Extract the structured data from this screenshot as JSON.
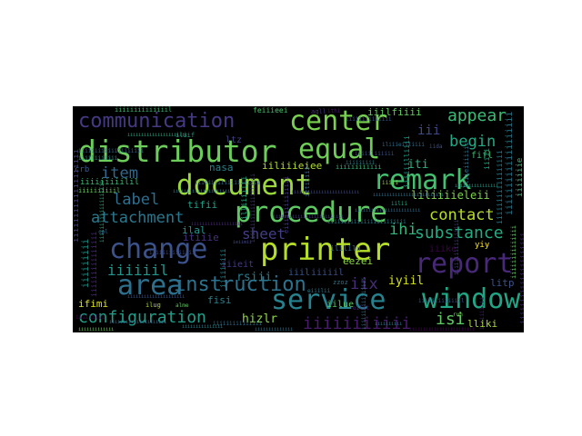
{
  "word_cloud": {
    "background": "#000000",
    "words": [
      {
        "text": "distributor",
        "color": "#6ccd5a"
      },
      {
        "text": "document",
        "color": "#9bd93c"
      },
      {
        "text": "procedure",
        "color": "#5ec962"
      },
      {
        "text": "printer",
        "color": "#b5de2b"
      },
      {
        "text": "change",
        "color": "#3b528b"
      },
      {
        "text": "equal",
        "color": "#6ece58"
      },
      {
        "text": "center",
        "color": "#7ad151"
      },
      {
        "text": "remark",
        "color": "#45bf70"
      },
      {
        "text": "report",
        "color": "#482878"
      },
      {
        "text": "area",
        "color": "#2d708e"
      },
      {
        "text": "service",
        "color": "#26828e"
      },
      {
        "text": "window",
        "color": "#21a685"
      },
      {
        "text": "communication",
        "color": "#443983"
      },
      {
        "text": "instruction",
        "color": "#2c728e"
      },
      {
        "text": "configuration",
        "color": "#1f9e89"
      },
      {
        "text": "substance",
        "color": "#25ab82"
      },
      {
        "text": "contact",
        "color": "#b8de29"
      },
      {
        "text": "attachment",
        "color": "#2a788e"
      },
      {
        "text": "appear",
        "color": "#3bbb75"
      },
      {
        "text": "begin",
        "color": "#22a884"
      },
      {
        "text": "label",
        "color": "#2e6e8e"
      },
      {
        "text": "item",
        "color": "#31688e"
      },
      {
        "text": "sheet",
        "color": "#433e85"
      },
      {
        "text": "iiiiiil",
        "color": "#1f958b"
      },
      {
        "text": "iiiiiiiiiii",
        "color": "#481b6d"
      },
      {
        "text": "iii",
        "color": "#3e4989"
      },
      {
        "text": "iti",
        "color": "#2ab07f"
      },
      {
        "text": "ihi",
        "color": "#35b779"
      },
      {
        "text": "iix",
        "color": "#472c7a"
      },
      {
        "text": "isi",
        "color": "#5ec962"
      },
      {
        "text": "lliki",
        "color": "#a8db34"
      },
      {
        "text": "liliiiieleii",
        "color": "#7fd34e"
      },
      {
        "text": "iiilfiiii",
        "color": "#63cb5f"
      },
      {
        "text": "feiiieei",
        "color": "#4ac16d"
      },
      {
        "text": "iiliiieiee",
        "color": "#b0dd2f"
      },
      {
        "text": "hizlr",
        "color": "#90d743"
      },
      {
        "text": "rsiii",
        "color": "#287c8e"
      },
      {
        "text": "eezei",
        "color": "#8bd646"
      },
      {
        "text": "iyiil",
        "color": "#d5e21a"
      },
      {
        "text": "litp",
        "color": "#3a538b"
      },
      {
        "text": "fisi",
        "color": "#26828e"
      },
      {
        "text": "ifimi",
        "color": "#d8e219"
      },
      {
        "text": "iilue",
        "color": "#5ac864"
      },
      {
        "text": "iiike",
        "color": "#440154"
      },
      {
        "text": "tifii",
        "color": "#1fa187"
      },
      {
        "text": "ilal",
        "color": "#1f948c"
      },
      {
        "text": "itiiie",
        "color": "#46327e"
      },
      {
        "text": "fifl",
        "color": "#3fbc73"
      },
      {
        "text": "nasa",
        "color": "#25848e"
      },
      {
        "text": "ltz",
        "color": "#424086"
      },
      {
        "text": "iiil",
        "color": "#38588c"
      },
      {
        "text": "crb",
        "color": "#38598c"
      },
      {
        "text": "yiy",
        "color": "#fde725"
      },
      {
        "text": "iiiiiiiiiiiiiil",
        "color": "#3aba76"
      },
      {
        "text": "iiiiiiiiiil",
        "color": "#6ccd5a"
      },
      {
        "text": "ilililu",
        "color": "#2e6f8e"
      },
      {
        "text": "zzoz",
        "color": "#2c728e"
      },
      {
        "text": "iiiiil",
        "color": "#3c508b"
      },
      {
        "text": "iiiiiiiiiiiiiii",
        "color": "#2d708e"
      },
      {
        "text": "iiiiiiiiiiii",
        "color": "#35b779"
      },
      {
        "text": "ilug",
        "color": "#a8db34"
      },
      {
        "text": "alme",
        "color": "#5ec962"
      },
      {
        "text": "aqll",
        "color": "#46337e"
      },
      {
        "text": "ithi",
        "color": "#48186a"
      },
      {
        "text": "iida",
        "color": "#3b528b"
      },
      {
        "text": "ruh",
        "color": "#6ece58"
      },
      {
        "text": "eiiilii",
        "color": "#2a788e"
      },
      {
        "text": "oilit",
        "color": "#481f70"
      },
      {
        "text": "iiiii",
        "color": "#90d743"
      },
      {
        "text": "iilii",
        "color": "#22a884"
      },
      {
        "text": "iiieit",
        "color": "#443983"
      },
      {
        "text": "cpl",
        "color": "#31688e"
      },
      {
        "text": "ieiimii",
        "color": "#3e4989"
      },
      {
        "text": "iiiiiiiii",
        "color": "#26828e"
      },
      {
        "text": "iliif",
        "color": "#1f9e89"
      },
      {
        "text": "iiiililii",
        "color": "#440154"
      },
      {
        "text": "iiiiiiiiiiiiiiiiiii",
        "color": "#433e85"
      },
      {
        "text": "iiiiiiiiilil",
        "color": "#3aba76"
      },
      {
        "text": "iliiieiiliiii",
        "color": "#2e6e8e"
      },
      {
        "text": "iiiiiiiii",
        "color": "#1f958b"
      },
      {
        "text": "iiiiiiiiiiiiiii",
        "color": "#482878"
      },
      {
        "text": "iiiiiiiiiiiiiiiiiii",
        "color": "#2a788e"
      },
      {
        "text": "iiiiiiiii",
        "color": "#26828e"
      },
      {
        "text": "iiiiiiiiiiiiil",
        "color": "#3b528b"
      },
      {
        "text": "illiiiilli",
        "color": "#25ab82"
      },
      {
        "text": "ittiiiiz",
        "color": "#31688e"
      },
      {
        "text": "eiiiiiiiiiiiiii",
        "color": "#443983"
      },
      {
        "text": "iiiiiiiiiiiiiiiiiiiii",
        "color": "#472c7a"
      },
      {
        "text": "iiiiiiiiiiiiiiiii",
        "color": "#287c8e"
      },
      {
        "text": "lliieiiiiiii",
        "color": "#2c728e"
      },
      {
        "text": "iiiiiilliiii",
        "color": "#1f9e89"
      },
      {
        "text": "iiiiiiiiiiiiiiii",
        "color": "#2d708e"
      },
      {
        "text": "iiiii",
        "color": "#22a884"
      },
      {
        "text": "iiiiiiie",
        "color": "#35b779"
      },
      {
        "text": "iiiiiiiiiiiiii",
        "color": "#5ec962"
      },
      {
        "text": "iiiiiiiiiiiiii",
        "color": "#3e4989"
      },
      {
        "text": "iiiiiiiiiiiiiiiiiiii",
        "color": "#2e6e8e"
      },
      {
        "text": "iiiiiiiiii",
        "color": "#481b6d"
      },
      {
        "text": "iiiiiiiiiiiiiiiii",
        "color": "#424086"
      },
      {
        "text": "iiiiiiiiiiiiiiiiiiiiiiii",
        "color": "#25848e"
      },
      {
        "text": "iiiiiiiiiiiii",
        "color": "#6ccd5a"
      },
      {
        "text": "iiiiliiiiiii",
        "color": "#1f948c"
      },
      {
        "text": "iiiiiliiiiii",
        "color": "#3a538b"
      },
      {
        "text": "iiiiiiiiiiiiii",
        "color": "#38588c"
      },
      {
        "text": "iiiiiiiiii",
        "color": "#2a788e"
      },
      {
        "text": "iiiiiiiiiiiiiiiiiiii",
        "color": "#31688e"
      },
      {
        "text": "iiiiiiiiiiiiiiiiiii",
        "color": "#25ab82"
      },
      {
        "text": "iiiiiiiiiiiiiiiiiiiii",
        "color": "#433e85"
      },
      {
        "text": "iiiiiiiiiiiiiii",
        "color": "#26828e"
      },
      {
        "text": "iiiiiiiiiiiiiiiiiiiii",
        "color": "#3b528b"
      },
      {
        "text": "iiiiiiiiiiiiiiiiiiiiiiii",
        "color": "#440154"
      },
      {
        "text": "iiiiiiiiiiiiii",
        "color": "#2c728e"
      },
      {
        "text": "iiiiiiiiiiiiiiii",
        "color": "#1f9e89"
      },
      {
        "text": "iiiiiiiiiiiiiiiiiiiiii",
        "color": "#22a884"
      },
      {
        "text": "iiiiiiiiiiiiiiiiiiiiiiiiii",
        "color": "#443983"
      },
      {
        "text": "iiiiiiiiiiiiiiiiiiiii",
        "color": "#31688e"
      },
      {
        "text": "iiiiiiiiiiiiiiiiiiiiiiiiii",
        "color": "#2d708e"
      },
      {
        "text": "iiiiiiiiiiiiiiiiiiiiiiiii",
        "color": "#3e4989"
      },
      {
        "text": "iiiiiiiiiiiiiiiiiiiii",
        "color": "#287c8e"
      },
      {
        "text": "iiiiiiiiiiiiiiiiiii",
        "color": "#482878"
      },
      {
        "text": "iiiiiiiiiiiiiiiiiiiiiiii",
        "color": "#2e6e8e"
      }
    ]
  }
}
